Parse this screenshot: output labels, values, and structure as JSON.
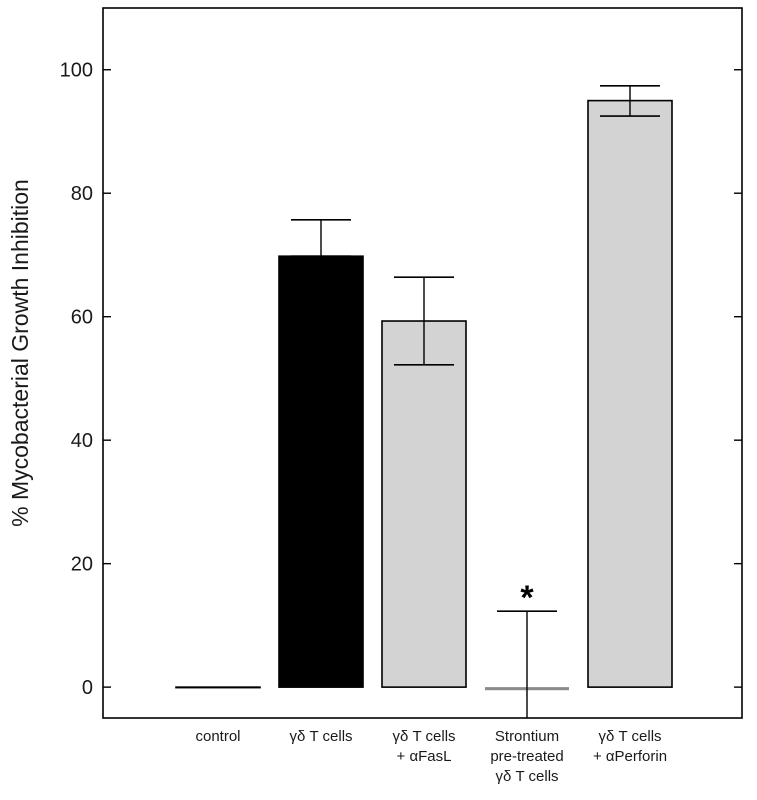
{
  "chart_data": {
    "type": "bar",
    "categories": [
      [
        "control"
      ],
      [
        "γδ T cells"
      ],
      [
        "γδ T cells",
        "+ αFasL"
      ],
      [
        "Strontium",
        "pre-treated",
        "γδ T cells"
      ],
      [
        "γδ T cells",
        "+ αPerforin"
      ]
    ],
    "values": [
      0,
      69.8,
      59.3,
      -0.5,
      95.0
    ],
    "error_upper": [
      null,
      75.7,
      66.4,
      12.3,
      97.4
    ],
    "error_lower": [
      null,
      69.8,
      52.2,
      -5,
      92.5
    ],
    "bar_colors": [
      "#ffffff",
      "#000000",
      "#d3d3d3",
      "#8a8a8a",
      "#d3d3d3"
    ],
    "title": "",
    "xlabel": "",
    "ylabel": "% Mycobacterial Growth Inhibition",
    "ylim": [
      -5,
      110
    ],
    "yticks": [
      0,
      20,
      40,
      60,
      80,
      100
    ],
    "grid": false,
    "annotations": [
      {
        "category_index": 3,
        "text": "*"
      }
    ]
  }
}
